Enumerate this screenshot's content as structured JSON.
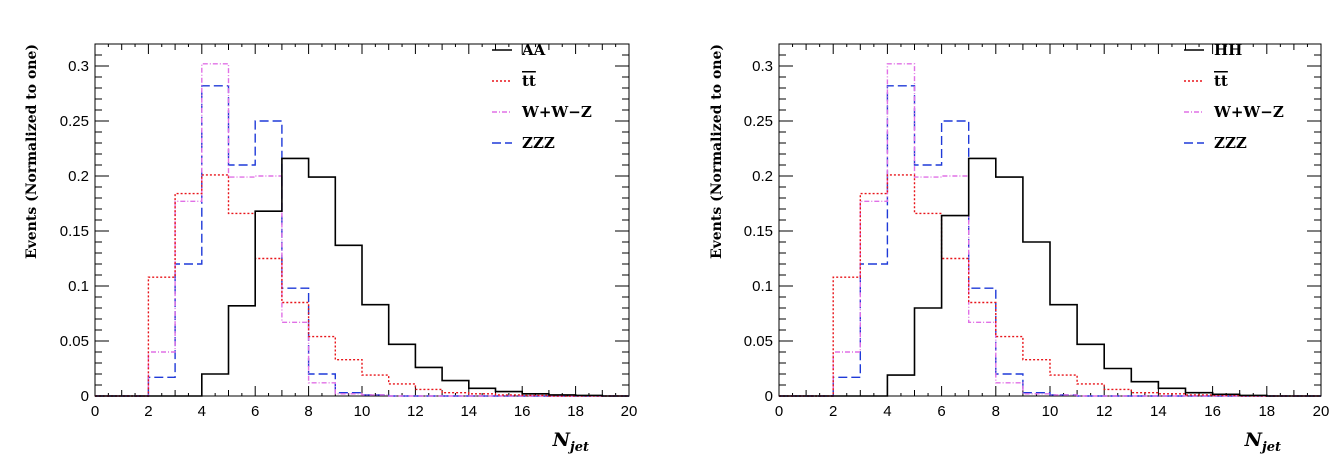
{
  "chart_data": [
    {
      "type": "histogram",
      "xlabel": "N",
      "xlabel_sub": "jet",
      "ylabel": "Events (Normalized to one)",
      "xlim": [
        0,
        20
      ],
      "ylim": [
        0,
        0.32
      ],
      "xticks": [
        0,
        2,
        4,
        6,
        8,
        10,
        12,
        14,
        16,
        18,
        20
      ],
      "yticks": [
        0,
        0.05,
        0.1,
        0.15,
        0.2,
        0.25,
        0.3
      ],
      "ytick_labels": [
        "0",
        "0.05",
        "0.1",
        "0.15",
        "0.2",
        "0.25",
        "0.3"
      ],
      "legend_position": "top-right",
      "bin_edges": [
        0,
        1,
        2,
        3,
        4,
        5,
        6,
        7,
        8,
        9,
        10,
        11,
        12,
        13,
        14,
        15,
        16,
        17,
        18,
        19,
        20
      ],
      "series": [
        {
          "name": "AA",
          "color": "#000000",
          "style": "solid",
          "values": [
            0,
            0,
            0,
            0,
            0.02,
            0.082,
            0.168,
            0.216,
            0.199,
            0.137,
            0.083,
            0.047,
            0.026,
            0.014,
            0.007,
            0.004,
            0.002,
            0.001,
            0.0005,
            0
          ]
        },
        {
          "name": "tt",
          "overline": true,
          "color": "#e8141a",
          "style": "dotted",
          "values": [
            0,
            0,
            0.108,
            0.184,
            0.201,
            0.166,
            0.125,
            0.085,
            0.054,
            0.033,
            0.019,
            0.011,
            0.006,
            0.003,
            0.002,
            0.001,
            0.0005,
            0,
            0,
            0
          ]
        },
        {
          "name": "W+W−Z",
          "color": "#e070e6",
          "style": "dash-dot",
          "values": [
            0,
            0,
            0.04,
            0.177,
            0.302,
            0.199,
            0.2,
            0.067,
            0.012,
            0.002,
            0.001,
            0,
            0,
            0,
            0,
            0,
            0,
            0,
            0,
            0
          ]
        },
        {
          "name": "ZZZ",
          "color": "#1f3ad8",
          "style": "dashed",
          "values": [
            0,
            0,
            0.017,
            0.12,
            0.282,
            0.21,
            0.25,
            0.098,
            0.02,
            0.003,
            0.001,
            0,
            0,
            0,
            0,
            0,
            0,
            0,
            0,
            0
          ]
        }
      ]
    },
    {
      "type": "histogram",
      "xlabel": "N",
      "xlabel_sub": "jet",
      "ylabel": "Events (Normalized to one)",
      "xlim": [
        0,
        20
      ],
      "ylim": [
        0,
        0.32
      ],
      "xticks": [
        0,
        2,
        4,
        6,
        8,
        10,
        12,
        14,
        16,
        18,
        20
      ],
      "yticks": [
        0,
        0.05,
        0.1,
        0.15,
        0.2,
        0.25,
        0.3
      ],
      "ytick_labels": [
        "0",
        "0.05",
        "0.1",
        "0.15",
        "0.2",
        "0.25",
        "0.3"
      ],
      "legend_position": "top-right",
      "bin_edges": [
        0,
        1,
        2,
        3,
        4,
        5,
        6,
        7,
        8,
        9,
        10,
        11,
        12,
        13,
        14,
        15,
        16,
        17,
        18,
        19,
        20
      ],
      "series": [
        {
          "name": "HH",
          "color": "#000000",
          "style": "solid",
          "values": [
            0,
            0,
            0,
            0,
            0.019,
            0.08,
            0.164,
            0.216,
            0.199,
            0.14,
            0.083,
            0.047,
            0.025,
            0.013,
            0.007,
            0.003,
            0.0015,
            0.0005,
            0,
            0
          ]
        },
        {
          "name": "tt",
          "overline": true,
          "color": "#e8141a",
          "style": "dotted",
          "values": [
            0,
            0,
            0.108,
            0.184,
            0.201,
            0.166,
            0.125,
            0.085,
            0.054,
            0.033,
            0.019,
            0.011,
            0.006,
            0.003,
            0.002,
            0.001,
            0.0005,
            0,
            0,
            0
          ]
        },
        {
          "name": "W+W−Z",
          "color": "#e070e6",
          "style": "dash-dot",
          "values": [
            0,
            0,
            0.04,
            0.177,
            0.302,
            0.199,
            0.2,
            0.067,
            0.012,
            0.002,
            0.001,
            0,
            0,
            0,
            0,
            0,
            0,
            0,
            0,
            0
          ]
        },
        {
          "name": "ZZZ",
          "color": "#1f3ad8",
          "style": "dashed",
          "values": [
            0,
            0,
            0.017,
            0.12,
            0.282,
            0.21,
            0.25,
            0.098,
            0.02,
            0.003,
            0.001,
            0,
            0,
            0,
            0,
            0,
            0,
            0,
            0,
            0
          ]
        }
      ]
    }
  ]
}
